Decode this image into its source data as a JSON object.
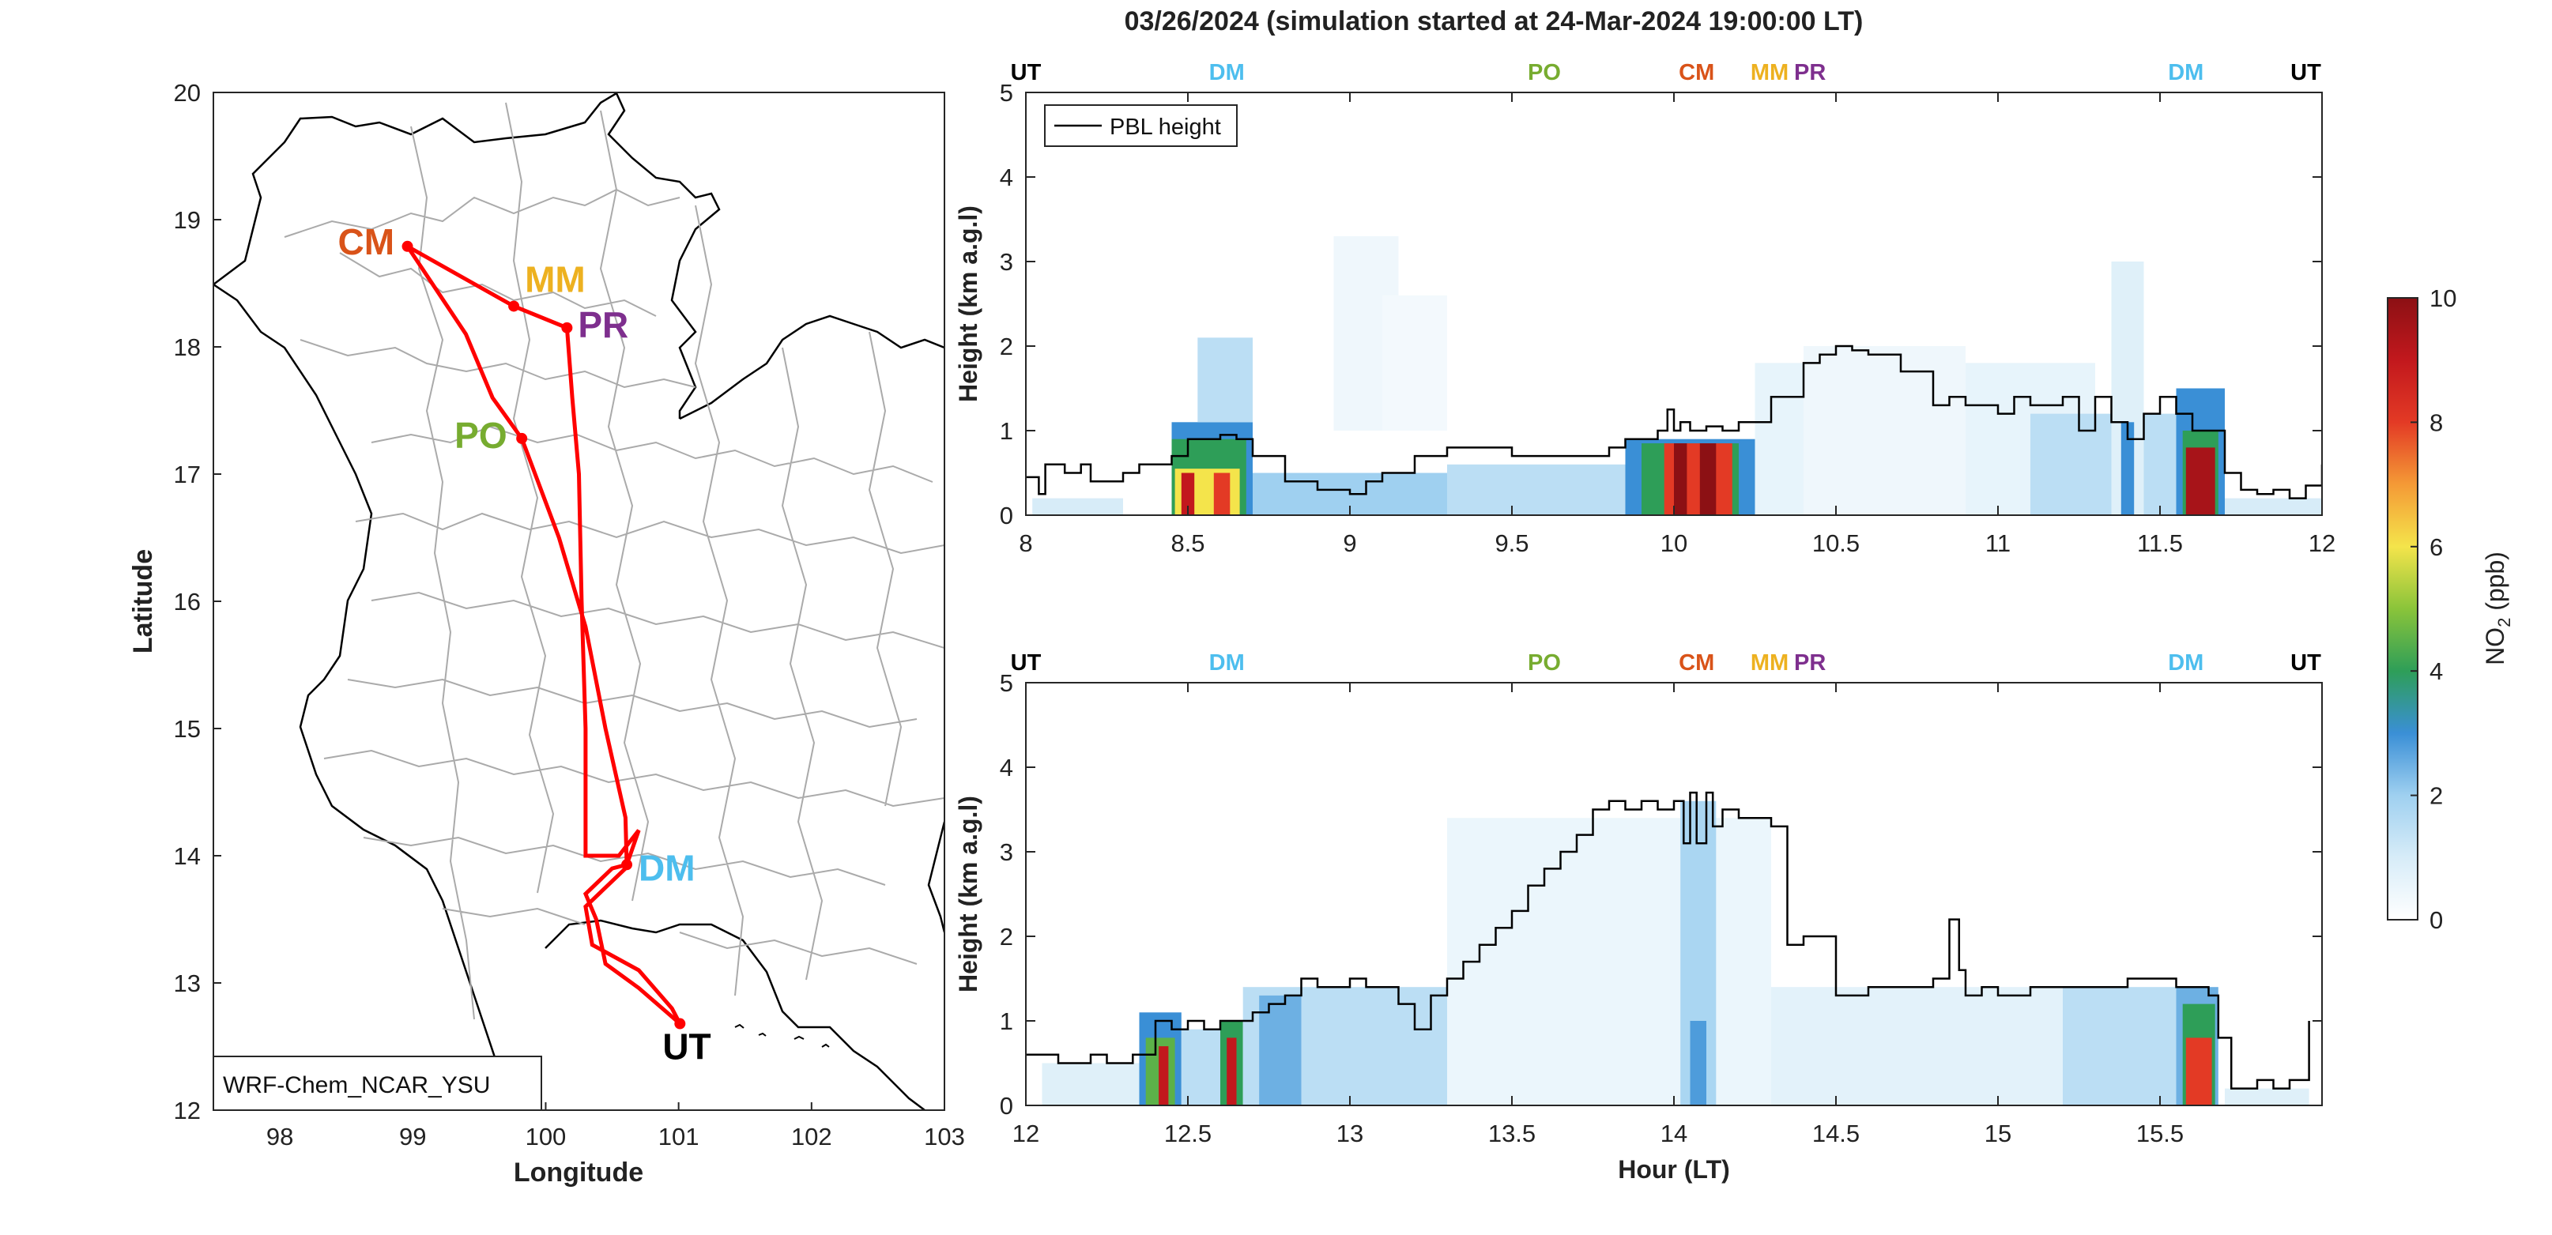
{
  "title": "03/26/2024 (simulation started at 24-Mar-2024 19:00:00 LT)",
  "colors": {
    "CM": "#d95319",
    "MM": "#edb120",
    "PR": "#7e2f8e",
    "PO": "#77ac30",
    "DM": "#4dbeee",
    "UT": "#000000",
    "route": "#ff0000",
    "pbl": "#000000"
  },
  "map": {
    "xlabel": "Longitude",
    "ylabel": "Latitude",
    "xlim": [
      97.5,
      103
    ],
    "ylim": [
      12,
      20
    ],
    "xticks": [
      "98",
      "99",
      "100",
      "101",
      "102",
      "103"
    ],
    "yticks": [
      "12",
      "13",
      "14",
      "15",
      "16",
      "17",
      "18",
      "19",
      "20"
    ],
    "model_label": "WRF-Chem_NCAR_YSU",
    "stations": [
      {
        "code": "CM",
        "lon": 98.96,
        "lat": 18.79
      },
      {
        "code": "MM",
        "lon": 99.76,
        "lat": 18.32
      },
      {
        "code": "PR",
        "lon": 100.16,
        "lat": 18.15
      },
      {
        "code": "PO",
        "lon": 99.82,
        "lat": 17.28
      },
      {
        "code": "DM",
        "lon": 100.61,
        "lat": 13.93
      },
      {
        "code": "UT",
        "lon": 101.01,
        "lat": 12.68
      }
    ],
    "route": [
      [
        101.01,
        12.68
      ],
      [
        100.7,
        12.96
      ],
      [
        100.45,
        13.15
      ],
      [
        100.38,
        13.5
      ],
      [
        100.3,
        13.7
      ],
      [
        100.5,
        13.9
      ],
      [
        100.61,
        13.93
      ],
      [
        100.6,
        14.3
      ],
      [
        100.45,
        15.0
      ],
      [
        100.3,
        15.8
      ],
      [
        100.1,
        16.5
      ],
      [
        99.82,
        17.28
      ],
      [
        99.6,
        17.6
      ],
      [
        99.4,
        18.1
      ],
      [
        98.96,
        18.79
      ],
      [
        99.76,
        18.32
      ],
      [
        100.16,
        18.15
      ],
      [
        100.2,
        17.6
      ],
      [
        100.25,
        17.0
      ],
      [
        100.27,
        16.0
      ],
      [
        100.3,
        15.0
      ],
      [
        100.3,
        14.0
      ],
      [
        100.55,
        14.0
      ],
      [
        100.7,
        14.2
      ],
      [
        100.6,
        13.9
      ],
      [
        100.3,
        13.6
      ],
      [
        100.35,
        13.3
      ],
      [
        100.7,
        13.1
      ],
      [
        100.95,
        12.8
      ],
      [
        101.01,
        12.68
      ]
    ]
  },
  "chart_data": [
    {
      "type": "heatmap",
      "title": "03/26/2024 (simulation started at 24-Mar-2024 19:00:00 LT)",
      "xlabel": "",
      "ylabel": "Height (km a.g.l)",
      "xlim": [
        8,
        12
      ],
      "ylim": [
        0,
        5
      ],
      "xticks": [
        "8",
        "8.5",
        "9",
        "9.5",
        "10",
        "10.5",
        "11",
        "11.5",
        "12"
      ],
      "yticks": [
        "0",
        "1",
        "2",
        "3",
        "4",
        "5"
      ],
      "colorbar": {
        "label": "NO2 (ppb)",
        "range": [
          0,
          10
        ],
        "ticks": [
          "0",
          "2",
          "4",
          "6",
          "8",
          "10"
        ]
      },
      "station_markers": [
        {
          "label": "UT",
          "x": 8.0
        },
        {
          "label": "DM",
          "x": 8.62
        },
        {
          "label": "PO",
          "x": 9.6
        },
        {
          "label": "CM",
          "x": 10.07
        },
        {
          "label": "MM",
          "x": 10.3
        },
        {
          "label": "PR",
          "x": 10.42
        },
        {
          "label": "DM",
          "x": 11.58
        },
        {
          "label": "UT",
          "x": 11.95
        }
      ],
      "series": [
        {
          "name": "PBL height",
          "x": [
            8.0,
            8.04,
            8.06,
            8.12,
            8.17,
            8.2,
            8.3,
            8.35,
            8.45,
            8.5,
            8.55,
            8.6,
            8.65,
            8.7,
            8.8,
            8.9,
            9.0,
            9.05,
            9.1,
            9.2,
            9.3,
            9.4,
            9.5,
            9.6,
            9.7,
            9.8,
            9.85,
            9.9,
            9.95,
            9.98,
            10.0,
            10.02,
            10.05,
            10.1,
            10.15,
            10.2,
            10.3,
            10.4,
            10.45,
            10.5,
            10.55,
            10.6,
            10.7,
            10.8,
            10.85,
            10.9,
            11.0,
            11.05,
            11.1,
            11.15,
            11.2,
            11.25,
            11.3,
            11.35,
            11.4,
            11.45,
            11.5,
            11.55,
            11.6,
            11.65,
            11.7,
            11.75,
            11.8,
            11.85,
            11.9,
            11.95,
            12.0
          ],
          "values": [
            0.45,
            0.25,
            0.6,
            0.5,
            0.6,
            0.4,
            0.5,
            0.6,
            0.7,
            0.9,
            0.9,
            0.95,
            0.9,
            0.7,
            0.4,
            0.3,
            0.25,
            0.4,
            0.5,
            0.7,
            0.8,
            0.8,
            0.7,
            0.7,
            0.7,
            0.8,
            0.9,
            0.9,
            1.0,
            1.25,
            1.0,
            1.1,
            1.0,
            1.05,
            1.0,
            1.1,
            1.4,
            1.8,
            1.9,
            2.0,
            1.95,
            1.9,
            1.7,
            1.3,
            1.4,
            1.3,
            1.2,
            1.4,
            1.3,
            1.3,
            1.4,
            1.0,
            1.4,
            1.1,
            0.9,
            1.2,
            1.4,
            1.2,
            1.0,
            1.0,
            0.5,
            0.3,
            0.25,
            0.3,
            0.2,
            0.35,
            0.6
          ]
        }
      ],
      "no2_blocks": [
        {
          "x0": 8.02,
          "x1": 8.3,
          "y0": 0.0,
          "y1": 0.2,
          "ppb": 1
        },
        {
          "x0": 8.45,
          "x1": 8.7,
          "y0": 0.0,
          "y1": 1.1,
          "ppb": 3
        },
        {
          "x0": 8.45,
          "x1": 8.68,
          "y0": 0.0,
          "y1": 0.9,
          "ppb": 4
        },
        {
          "x0": 8.46,
          "x1": 8.66,
          "y0": 0.0,
          "y1": 0.55,
          "ppb": 6
        },
        {
          "x0": 8.48,
          "x1": 8.52,
          "y0": 0.0,
          "y1": 0.5,
          "ppb": 9
        },
        {
          "x0": 8.58,
          "x1": 8.63,
          "y0": 0.0,
          "y1": 0.5,
          "ppb": 8
        },
        {
          "x0": 8.53,
          "x1": 8.7,
          "y0": 1.1,
          "y1": 2.1,
          "ppb": 1.5
        },
        {
          "x0": 8.7,
          "x1": 9.3,
          "y0": 0.0,
          "y1": 0.5,
          "ppb": 2
        },
        {
          "x0": 8.95,
          "x1": 9.15,
          "y0": 1.0,
          "y1": 3.3,
          "ppb": 0.4
        },
        {
          "x0": 9.1,
          "x1": 9.3,
          "y0": 1.0,
          "y1": 2.6,
          "ppb": 0.3
        },
        {
          "x0": 9.3,
          "x1": 9.9,
          "y0": 0.0,
          "y1": 0.6,
          "ppb": 1.5
        },
        {
          "x0": 9.85,
          "x1": 10.25,
          "y0": 0.0,
          "y1": 0.9,
          "ppb": 3
        },
        {
          "x0": 9.9,
          "x1": 10.2,
          "y0": 0.0,
          "y1": 0.85,
          "ppb": 4
        },
        {
          "x0": 9.97,
          "x1": 10.18,
          "y0": 0.0,
          "y1": 0.85,
          "ppb": 8
        },
        {
          "x0": 10.0,
          "x1": 10.04,
          "y0": 0.0,
          "y1": 0.85,
          "ppb": 10
        },
        {
          "x0": 10.08,
          "x1": 10.13,
          "y0": 0.0,
          "y1": 0.85,
          "ppb": 10
        },
        {
          "x0": 10.25,
          "x1": 11.3,
          "y0": 0.0,
          "y1": 1.8,
          "ppb": 0.6
        },
        {
          "x0": 10.4,
          "x1": 10.9,
          "y0": 0.0,
          "y1": 2.0,
          "ppb": 0.4
        },
        {
          "x0": 11.1,
          "x1": 11.55,
          "y0": 0.0,
          "y1": 1.2,
          "ppb": 1.5
        },
        {
          "x0": 11.35,
          "x1": 11.45,
          "y0": 0.0,
          "y1": 3.0,
          "ppb": 0.8
        },
        {
          "x0": 11.38,
          "x1": 11.42,
          "y0": 0.0,
          "y1": 1.1,
          "ppb": 3
        },
        {
          "x0": 11.55,
          "x1": 11.7,
          "y0": 0.0,
          "y1": 1.5,
          "ppb": 3
        },
        {
          "x0": 11.57,
          "x1": 11.68,
          "y0": 0.0,
          "y1": 1.0,
          "ppb": 4
        },
        {
          "x0": 11.58,
          "x1": 11.67,
          "y0": 0.0,
          "y1": 0.8,
          "ppb": 9.5
        },
        {
          "x0": 11.7,
          "x1": 12.0,
          "y0": 0.0,
          "y1": 0.2,
          "ppb": 1
        }
      ]
    },
    {
      "type": "heatmap",
      "title": "",
      "xlabel": "Hour (LT)",
      "ylabel": "Height (km a.g.l)",
      "xlim": [
        12,
        16
      ],
      "ylim": [
        0,
        5
      ],
      "xticks": [
        "12",
        "12.5",
        "13",
        "13.5",
        "14",
        "14.5",
        "15",
        "15.5"
      ],
      "yticks": [
        "0",
        "1",
        "2",
        "3",
        "4",
        "5"
      ],
      "station_markers": [
        {
          "label": "UT",
          "x": 12.0
        },
        {
          "label": "DM",
          "x": 12.62
        },
        {
          "label": "PO",
          "x": 13.6
        },
        {
          "label": "CM",
          "x": 14.07
        },
        {
          "label": "MM",
          "x": 14.3
        },
        {
          "label": "PR",
          "x": 14.42
        },
        {
          "label": "DM",
          "x": 15.58
        },
        {
          "label": "UT",
          "x": 15.95
        }
      ],
      "series": [
        {
          "name": "PBL height",
          "x": [
            12.0,
            12.03,
            12.1,
            12.2,
            12.25,
            12.3,
            12.33,
            12.4,
            12.45,
            12.5,
            12.55,
            12.6,
            12.65,
            12.7,
            12.75,
            12.8,
            12.85,
            12.9,
            12.95,
            13.0,
            13.05,
            13.1,
            13.15,
            13.2,
            13.25,
            13.3,
            13.35,
            13.4,
            13.45,
            13.5,
            13.55,
            13.6,
            13.65,
            13.7,
            13.75,
            13.8,
            13.85,
            13.9,
            13.95,
            14.0,
            14.03,
            14.05,
            14.07,
            14.1,
            14.12,
            14.15,
            14.2,
            14.25,
            14.3,
            14.35,
            14.4,
            14.45,
            14.5,
            14.6,
            14.7,
            14.8,
            14.85,
            14.88,
            14.9,
            14.95,
            15.0,
            15.1,
            15.2,
            15.3,
            15.4,
            15.5,
            15.55,
            15.6,
            15.65,
            15.68,
            15.72,
            15.75,
            15.8,
            15.85,
            15.9,
            15.93,
            15.96
          ],
          "values": [
            0.6,
            0.6,
            0.5,
            0.6,
            0.5,
            0.5,
            0.6,
            1.0,
            0.9,
            1.0,
            0.9,
            1.0,
            1.0,
            1.1,
            1.2,
            1.3,
            1.5,
            1.4,
            1.4,
            1.5,
            1.4,
            1.4,
            1.2,
            0.9,
            1.3,
            1.5,
            1.7,
            1.9,
            2.1,
            2.3,
            2.6,
            2.8,
            3.0,
            3.2,
            3.5,
            3.6,
            3.5,
            3.6,
            3.5,
            3.6,
            3.1,
            3.7,
            3.1,
            3.7,
            3.3,
            3.5,
            3.4,
            3.4,
            3.3,
            1.9,
            2.0,
            2.0,
            1.3,
            1.4,
            1.4,
            1.5,
            2.2,
            1.6,
            1.3,
            1.4,
            1.3,
            1.4,
            1.4,
            1.4,
            1.5,
            1.5,
            1.4,
            1.4,
            1.3,
            0.8,
            0.2,
            0.2,
            0.3,
            0.2,
            0.3,
            0.3,
            1.0
          ]
        }
      ],
      "no2_blocks": [
        {
          "x0": 12.05,
          "x1": 12.35,
          "y0": 0.0,
          "y1": 0.5,
          "ppb": 0.8
        },
        {
          "x0": 12.35,
          "x1": 12.48,
          "y0": 0.0,
          "y1": 1.1,
          "ppb": 3
        },
        {
          "x0": 12.37,
          "x1": 12.46,
          "y0": 0.0,
          "y1": 0.8,
          "ppb": 4.5
        },
        {
          "x0": 12.41,
          "x1": 12.44,
          "y0": 0.0,
          "y1": 0.7,
          "ppb": 9
        },
        {
          "x0": 12.48,
          "x1": 12.6,
          "y0": 0.0,
          "y1": 0.9,
          "ppb": 1.5
        },
        {
          "x0": 12.6,
          "x1": 12.67,
          "y0": 0.0,
          "y1": 1.0,
          "ppb": 4
        },
        {
          "x0": 12.62,
          "x1": 12.65,
          "y0": 0.0,
          "y1": 0.8,
          "ppb": 9
        },
        {
          "x0": 12.67,
          "x1": 13.3,
          "y0": 0.0,
          "y1": 1.4,
          "ppb": 1.5
        },
        {
          "x0": 12.72,
          "x1": 12.85,
          "y0": 0.0,
          "y1": 1.3,
          "ppb": 2.5
        },
        {
          "x0": 13.3,
          "x1": 14.3,
          "y0": 0.0,
          "y1": 3.4,
          "ppb": 0.5
        },
        {
          "x0": 14.02,
          "x1": 14.13,
          "y0": 0.0,
          "y1": 3.6,
          "ppb": 1.8
        },
        {
          "x0": 14.05,
          "x1": 14.1,
          "y0": 0.0,
          "y1": 1.0,
          "ppb": 2.8
        },
        {
          "x0": 14.3,
          "x1": 15.2,
          "y0": 0.0,
          "y1": 1.4,
          "ppb": 0.7
        },
        {
          "x0": 15.2,
          "x1": 15.55,
          "y0": 0.0,
          "y1": 1.4,
          "ppb": 1.5
        },
        {
          "x0": 15.55,
          "x1": 15.68,
          "y0": 0.0,
          "y1": 1.4,
          "ppb": 2.5
        },
        {
          "x0": 15.57,
          "x1": 15.67,
          "y0": 0.0,
          "y1": 1.2,
          "ppb": 4
        },
        {
          "x0": 15.58,
          "x1": 15.66,
          "y0": 0.0,
          "y1": 0.8,
          "ppb": 8
        },
        {
          "x0": 15.7,
          "x1": 15.96,
          "y0": 0.0,
          "y1": 0.2,
          "ppb": 0.8
        }
      ]
    }
  ]
}
